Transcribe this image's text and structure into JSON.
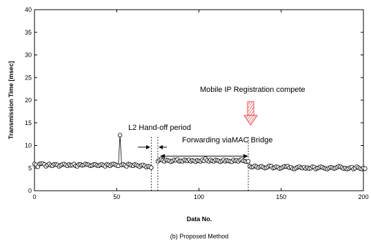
{
  "chart_data": {
    "type": "line",
    "xlabel": "Data No.",
    "ylabel": "Transmission Time [msec]",
    "xlim": [
      0,
      200
    ],
    "ylim": [
      0,
      40
    ],
    "xticks": [
      0,
      50,
      100,
      150,
      200
    ],
    "yticks": [
      0,
      5,
      10,
      15,
      20,
      25,
      30,
      35,
      40
    ],
    "grid": false,
    "marker": "open-circle",
    "series": [
      {
        "values": [
          5.9,
          5.7,
          5.3,
          5.9,
          6.0,
          6.0,
          5.8,
          5.4,
          5.7,
          5.9,
          5.6,
          5.5,
          5.8,
          5.8,
          5.7,
          5.4,
          5.6,
          5.8,
          5.9,
          5.7,
          5.5,
          5.8,
          5.6,
          5.7,
          5.9,
          5.5,
          5.4,
          5.8,
          5.8,
          5.6,
          5.7,
          5.9,
          5.8,
          5.7,
          5.5,
          5.6,
          5.8,
          5.8,
          5.6,
          5.5,
          5.7,
          5.8,
          5.6,
          5.4,
          5.8,
          5.7,
          5.5,
          5.8,
          5.9,
          5.8,
          5.6,
          5.5,
          12.3,
          5.7,
          5.8,
          5.6,
          5.4,
          5.9,
          5.8,
          5.6,
          5.5,
          5.8,
          5.7,
          5.5,
          5.3,
          5.6,
          5.7,
          5.5,
          5.2,
          5.4,
          5.3,
          5.1,
          null,
          null,
          null,
          6.5,
          6.8,
          6.9,
          6.7,
          6.5,
          6.8,
          6.7,
          6.6,
          6.4,
          6.6,
          6.8,
          6.7,
          6.9,
          6.5,
          6.6,
          6.5,
          6.8,
          6.7,
          6.6,
          6.8,
          6.5,
          6.7,
          6.6,
          6.4,
          6.7,
          6.6,
          6.5,
          6.8,
          6.6,
          7.1,
          6.7,
          6.5,
          6.8,
          6.6,
          6.5,
          6.8,
          6.7,
          6.6,
          6.4,
          6.6,
          6.8,
          6.5,
          6.7,
          6.6,
          6.5,
          6.4,
          6.8,
          6.6,
          6.7,
          6.5,
          6.8,
          6.9,
          6.6,
          6.5,
          6.4,
          6.5,
          5.4,
          5.2,
          5.3,
          5.5,
          5.3,
          5.1,
          5.3,
          5.4,
          5.2,
          5.0,
          5.1,
          5.3,
          5.5,
          5.4,
          5.0,
          5.1,
          5.3,
          5.2,
          4.9,
          5.0,
          5.2,
          5.4,
          5.3,
          5.4,
          5.1,
          5.2,
          4.9,
          4.8,
          5.0,
          5.2,
          5.3,
          5.1,
          5.0,
          5.2,
          4.9,
          5.1,
          4.9,
          5.0,
          5.3,
          5.2,
          4.8,
          5.0,
          5.1,
          5.3,
          5.2,
          5.0,
          4.9,
          4.8,
          5.0,
          5.2,
          5.1,
          4.9,
          5.0,
          5.2,
          5.4,
          5.3,
          5.1,
          4.9,
          5.0,
          4.8,
          4.9,
          5.1,
          5.2,
          4.8,
          5.0,
          5.3,
          5.1,
          4.9,
          4.8,
          5.0,
          4.9
        ]
      }
    ],
    "vlines": [
      71,
      75,
      130
    ],
    "annotations": [
      {
        "text": "L2 Hand-off period"
      },
      {
        "text": "Forwarding viaMAC Bridge"
      },
      {
        "text": "Mobile IP Registration compete"
      }
    ],
    "caption": "(b) Proposed Method"
  }
}
